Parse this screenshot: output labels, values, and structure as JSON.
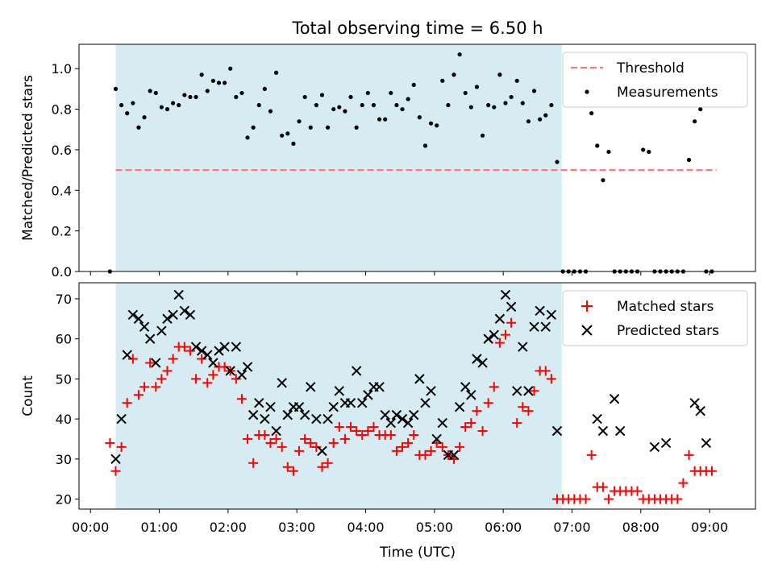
{
  "title": "Total observing time = 6.50 h",
  "chart_data": [
    {
      "type": "scatter",
      "ylabel": "Matched/Predicted stars",
      "xlim": [
        -10,
        580
      ],
      "ylim": [
        0,
        1.12
      ],
      "yticks": [
        0.0,
        0.2,
        0.4,
        0.6,
        0.8,
        1.0
      ],
      "ytick_labels": [
        "0.0",
        "0.2",
        "0.4",
        "0.6",
        "0.8",
        "1.0"
      ],
      "shaded_span": [
        22,
        411
      ],
      "threshold": {
        "name": "Threshold",
        "y": 0.5,
        "x": [
          22,
          546
        ],
        "color": "#f08080"
      },
      "legend": [
        "Threshold",
        "Measurements"
      ],
      "legend_position": "upper right",
      "series": [
        {
          "name": "Measurements",
          "color": "#000000",
          "x": [
            17,
            22,
            27,
            32,
            37,
            42,
            47,
            52,
            57,
            62,
            67,
            72,
            77,
            82,
            87,
            92,
            97,
            102,
            107,
            112,
            117,
            122,
            127,
            132,
            137,
            142,
            147,
            152,
            157,
            162,
            167,
            172,
            177,
            182,
            187,
            192,
            197,
            202,
            207,
            212,
            217,
            222,
            227,
            232,
            237,
            242,
            247,
            252,
            257,
            262,
            267,
            272,
            277,
            282,
            287,
            292,
            297,
            302,
            307,
            312,
            317,
            322,
            327,
            332,
            337,
            342,
            347,
            352,
            357,
            362,
            367,
            372,
            377,
            382,
            387,
            392,
            397,
            402,
            407,
            412,
            417,
            422,
            427,
            432,
            437,
            442,
            447,
            452,
            457,
            462,
            467,
            472,
            477,
            482,
            487,
            492,
            497,
            502,
            507,
            512,
            517,
            522,
            527,
            532,
            537,
            542
          ],
          "y": [
            0.0,
            0.9,
            0.82,
            0.78,
            0.83,
            0.71,
            0.76,
            0.89,
            0.88,
            0.81,
            0.8,
            0.83,
            0.82,
            0.87,
            0.86,
            0.86,
            0.97,
            0.89,
            0.94,
            0.93,
            0.93,
            1.0,
            0.86,
            0.88,
            0.66,
            0.71,
            0.82,
            0.9,
            0.79,
            0.98,
            0.67,
            0.68,
            0.63,
            0.74,
            0.86,
            0.71,
            0.82,
            0.87,
            0.71,
            0.8,
            0.81,
            0.79,
            0.86,
            0.71,
            0.82,
            0.88,
            0.82,
            0.75,
            0.75,
            0.88,
            0.82,
            0.8,
            0.85,
            0.92,
            0.76,
            0.62,
            0.73,
            0.72,
            0.94,
            0.82,
            0.97,
            1.07,
            0.88,
            0.81,
            0.91,
            0.67,
            0.82,
            0.81,
            0.97,
            0.83,
            0.86,
            0.94,
            0.83,
            0.74,
            0.89,
            0.75,
            0.77,
            0.82,
            0.54,
            0.0,
            0.0,
            0.0,
            0.0,
            0.0,
            0.78,
            0.62,
            0.45,
            0.59,
            0.0,
            0.0,
            0.0,
            0.0,
            0.0,
            0.6,
            0.59,
            0.0,
            0.0,
            0.0,
            0.0,
            0.0,
            0.0,
            0.55,
            0.74,
            0.8,
            0.0,
            0.0
          ]
        }
      ]
    },
    {
      "type": "scatter",
      "xlabel": "Time (UTC)",
      "ylabel": "Count",
      "xlim": [
        -10,
        580
      ],
      "ylim": [
        17.5,
        74
      ],
      "yticks": [
        20,
        30,
        40,
        50,
        60,
        70
      ],
      "ytick_labels": [
        "20",
        "30",
        "40",
        "50",
        "60",
        "70"
      ],
      "xticks": [
        0,
        60,
        120,
        180,
        240,
        300,
        360,
        420,
        480,
        540
      ],
      "xtick_labels": [
        "00:00",
        "01:00",
        "02:00",
        "03:00",
        "04:00",
        "05:00",
        "06:00",
        "07:00",
        "08:00",
        "09:00"
      ],
      "shaded_span": [
        22,
        411
      ],
      "legend": [
        "Matched stars",
        "Predicted stars"
      ],
      "legend_position": "upper right",
      "series": [
        {
          "name": "Matched stars",
          "color": "#ff0000",
          "marker": "plus",
          "x": [
            17,
            22,
            27,
            32,
            37,
            42,
            47,
            52,
            57,
            62,
            67,
            72,
            77,
            82,
            87,
            92,
            97,
            102,
            107,
            112,
            117,
            122,
            127,
            132,
            137,
            142,
            147,
            152,
            157,
            162,
            167,
            172,
            177,
            182,
            187,
            192,
            197,
            202,
            207,
            212,
            217,
            222,
            227,
            232,
            237,
            242,
            247,
            252,
            257,
            262,
            267,
            272,
            277,
            282,
            287,
            292,
            297,
            302,
            307,
            312,
            317,
            322,
            327,
            332,
            337,
            342,
            347,
            352,
            357,
            362,
            367,
            372,
            377,
            382,
            387,
            392,
            397,
            402,
            407,
            412,
            417,
            422,
            427,
            432,
            437,
            442,
            447,
            452,
            457,
            462,
            467,
            472,
            477,
            482,
            487,
            492,
            497,
            502,
            507,
            512,
            517,
            522,
            527,
            532,
            537,
            542
          ],
          "y": [
            34,
            27,
            33,
            44,
            55,
            46,
            48,
            54,
            48,
            50,
            52,
            55,
            58,
            58,
            57,
            50,
            55,
            49,
            51,
            53,
            53,
            52,
            50,
            45,
            35,
            29,
            36,
            36,
            34,
            35,
            33,
            28,
            27,
            32,
            35,
            34,
            33,
            28,
            29,
            34,
            38,
            35,
            38,
            37,
            36,
            37,
            38,
            36,
            36,
            36,
            32,
            33,
            34,
            36,
            31,
            31,
            32,
            34,
            33,
            31,
            30,
            33,
            38,
            39,
            42,
            37,
            44,
            48,
            59,
            61,
            64,
            39,
            43,
            42,
            47,
            52,
            52,
            50,
            20,
            20,
            20,
            20,
            20,
            20,
            31,
            23,
            23,
            20,
            22,
            22,
            22,
            22,
            22,
            20,
            20,
            20,
            20,
            20,
            20,
            20,
            24,
            31,
            27,
            27,
            27,
            27
          ]
        },
        {
          "name": "Predicted stars",
          "color": "#000000",
          "marker": "x",
          "x": [
            22,
            27,
            32,
            37,
            42,
            47,
            52,
            57,
            62,
            67,
            72,
            77,
            82,
            87,
            92,
            97,
            102,
            107,
            112,
            117,
            122,
            127,
            132,
            137,
            142,
            147,
            152,
            157,
            162,
            167,
            172,
            177,
            182,
            187,
            192,
            197,
            202,
            207,
            212,
            217,
            222,
            227,
            232,
            237,
            242,
            247,
            252,
            257,
            262,
            267,
            272,
            277,
            282,
            287,
            292,
            297,
            302,
            307,
            312,
            317,
            322,
            327,
            332,
            337,
            342,
            347,
            352,
            357,
            362,
            367,
            372,
            377,
            382,
            387,
            392,
            397,
            402,
            407,
            412,
            442,
            447,
            457,
            462,
            492,
            502,
            527,
            532,
            537
          ],
          "y": [
            30,
            40,
            56,
            66,
            65,
            63,
            60,
            54,
            62,
            65,
            66,
            71,
            67,
            66,
            58,
            57,
            56,
            54,
            57,
            58,
            52,
            58,
            51,
            53,
            41,
            44,
            40,
            43,
            37,
            49,
            41,
            43,
            43,
            41,
            48,
            40,
            32,
            40,
            43,
            47,
            44,
            44,
            52,
            44,
            46,
            48,
            48,
            41,
            39,
            41,
            40,
            39,
            41,
            50,
            44,
            47,
            35,
            39,
            31,
            31,
            43,
            48,
            46,
            55,
            54,
            60,
            61,
            65,
            71,
            68,
            47,
            58,
            47,
            63,
            67,
            63,
            66,
            37,
            null,
            40,
            37,
            45,
            37,
            33,
            34,
            44,
            42,
            34
          ]
        }
      ]
    }
  ]
}
